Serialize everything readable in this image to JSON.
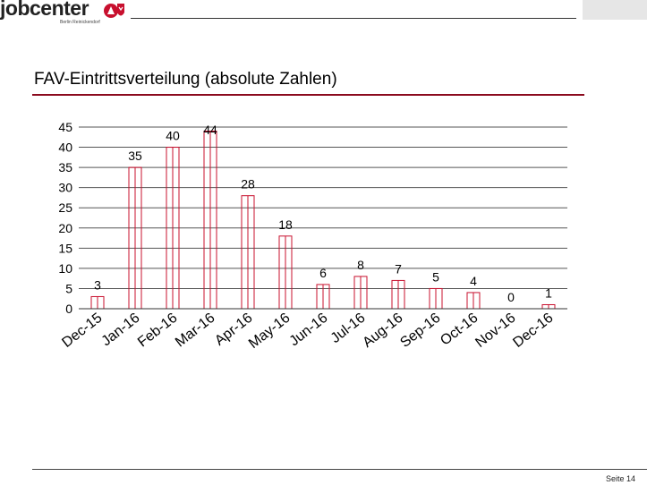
{
  "header": {
    "logo_text": "jobcenter",
    "logo_subtext": "Berlin Reinickendorf",
    "brand_color": "#c8102e",
    "accent_color": "#8b0a1e"
  },
  "title": "FAV-Eintrittsverteilung (absolute Zahlen)",
  "footer": {
    "page_label": "Seite 14"
  },
  "chart_data": {
    "type": "bar",
    "categories": [
      "Dec-15",
      "Jan-16",
      "Feb-16",
      "Mar-16",
      "Apr-16",
      "May-16",
      "Jun-16",
      "Jul-16",
      "Aug-16",
      "Sep-16",
      "Oct-16",
      "Nov-16",
      "Dec-16"
    ],
    "values": [
      3,
      35,
      40,
      44,
      28,
      18,
      6,
      8,
      7,
      5,
      4,
      0,
      1
    ],
    "data_labels": [
      "3",
      "35",
      "40",
      "44",
      "28",
      "18",
      "6",
      "8",
      "7",
      "5",
      "4",
      "0",
      "1"
    ],
    "yticks": [
      "0",
      "5",
      "10",
      "15",
      "20",
      "25",
      "30",
      "35",
      "40",
      "45"
    ],
    "ylim": [
      0,
      45
    ],
    "grid": true,
    "bar_color": "#c8102e"
  }
}
